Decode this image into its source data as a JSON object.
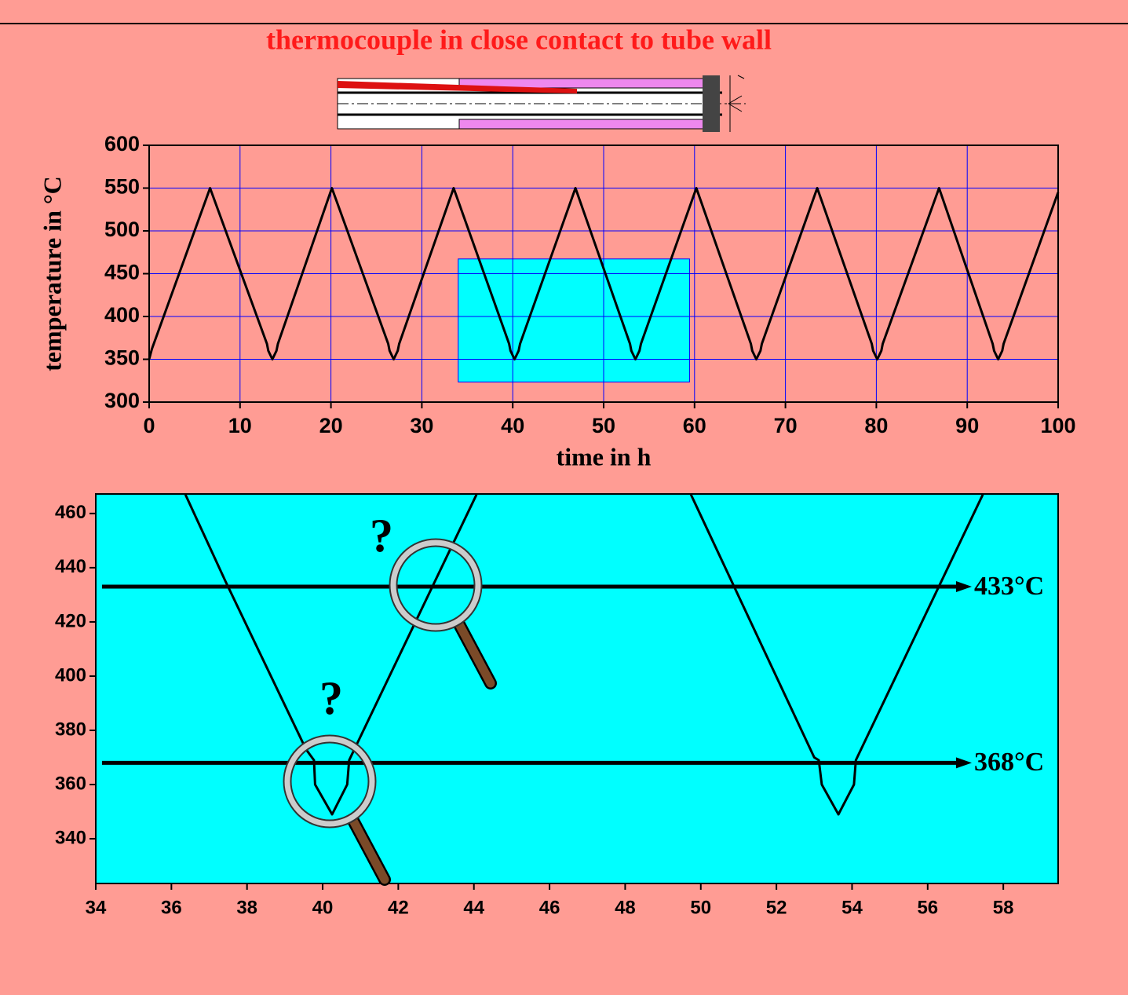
{
  "chart_data": [
    {
      "type": "line",
      "title": "thermocouple in close contact to tube wall",
      "x_label": "time in h",
      "y_label": "temperature in °C",
      "x": [
        0,
        0.3,
        6.7,
        12.96,
        13.11,
        13.56,
        14.01,
        14.16,
        20.1,
        26.3,
        26.45,
        26.9,
        27.35,
        27.5,
        33.5,
        39.6,
        39.75,
        40.2,
        40.65,
        40.8,
        46.9,
        52.9,
        53.05,
        53.5,
        53.95,
        54.1,
        60.2,
        66.2,
        66.35,
        66.8,
        67.25,
        67.4,
        73.5,
        79.5,
        79.65,
        80.1,
        80.55,
        80.7,
        86.9,
        92.8,
        92.95,
        93.4,
        93.85,
        94.0,
        100
      ],
      "series": [
        {
          "color": "#000000",
          "values": [
            350,
            362,
            550,
            368,
            360,
            350,
            360,
            368,
            550,
            368,
            360,
            350,
            360,
            368,
            550,
            368,
            360,
            350,
            360,
            368,
            550,
            368,
            360,
            350,
            360,
            368,
            550,
            368,
            360,
            350,
            360,
            368,
            550,
            368,
            360,
            350,
            360,
            368,
            550,
            368,
            360,
            350,
            360,
            368,
            545
          ]
        }
      ],
      "xlim": [
        0,
        100
      ],
      "ylim": [
        300,
        600
      ],
      "xticks": [
        0,
        10,
        20,
        30,
        40,
        50,
        60,
        70,
        80,
        90,
        100
      ],
      "yticks": [
        300,
        350,
        400,
        450,
        500,
        550,
        600
      ],
      "grid": true,
      "grid_color": "#0000ff",
      "title_color": "#ff1a1a"
    },
    {
      "type": "line",
      "x": [
        36.37,
        37.43,
        39.56,
        39.77,
        39.8,
        40.25,
        40.65,
        40.7,
        44.07,
        46.9,
        49.74,
        53.0,
        53.12,
        53.2,
        53.64,
        54.05,
        54.1,
        57.46
      ],
      "series": [
        {
          "color": "#000000",
          "values": [
            467,
            435,
            373,
            369,
            360,
            349,
            360,
            369,
            467,
            null,
            467,
            370,
            369,
            360,
            349,
            360,
            369,
            467
          ]
        }
      ],
      "xlim": [
        34,
        59.45
      ],
      "ylim": [
        323.5,
        467.2
      ],
      "xticks": [
        34,
        36,
        38,
        40,
        42,
        44,
        46,
        48,
        50,
        52,
        54,
        56,
        58
      ],
      "yticks": [
        340,
        360,
        380,
        400,
        420,
        440,
        460
      ],
      "grid": false,
      "background": "#00ffff",
      "hlines": [
        {
          "value": 433,
          "label": "433°C"
        },
        {
          "value": 368,
          "label": "368°C"
        }
      ],
      "annotations": [
        "?",
        "?"
      ]
    }
  ]
}
